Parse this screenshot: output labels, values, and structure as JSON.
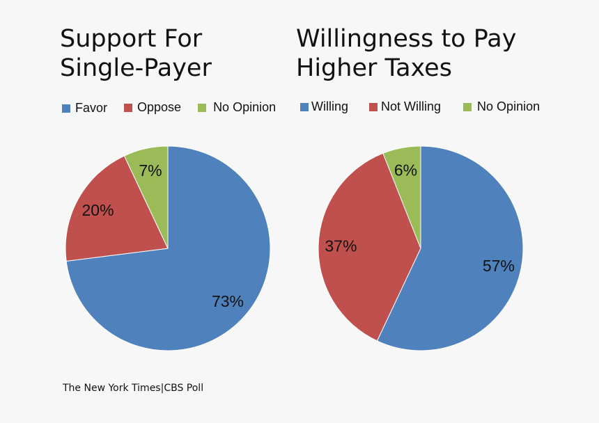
{
  "colors": {
    "blue": "#4F81BD",
    "red": "#C0504D",
    "green": "#9BBB59",
    "background": "#F7F7F7"
  },
  "source": "The New York Times|CBS Poll",
  "chart_data": [
    {
      "type": "pie",
      "title": "Support For\nSingle-Payer",
      "categories": [
        "Favor",
        "Oppose",
        "No Opinion"
      ],
      "values": [
        73,
        20,
        7
      ],
      "labels": [
        "73%",
        "20%",
        "7%"
      ],
      "colors": [
        "#4F81BD",
        "#C0504D",
        "#9BBB59"
      ],
      "legend": "top"
    },
    {
      "type": "pie",
      "title": "Willingness to Pay\nHigher Taxes",
      "categories": [
        "Willing",
        "Not Willing",
        "No Opinion"
      ],
      "values": [
        57,
        37,
        6
      ],
      "labels": [
        "57%",
        "37%",
        "6%"
      ],
      "colors": [
        "#4F81BD",
        "#C0504D",
        "#9BBB59"
      ],
      "legend": "top"
    }
  ]
}
